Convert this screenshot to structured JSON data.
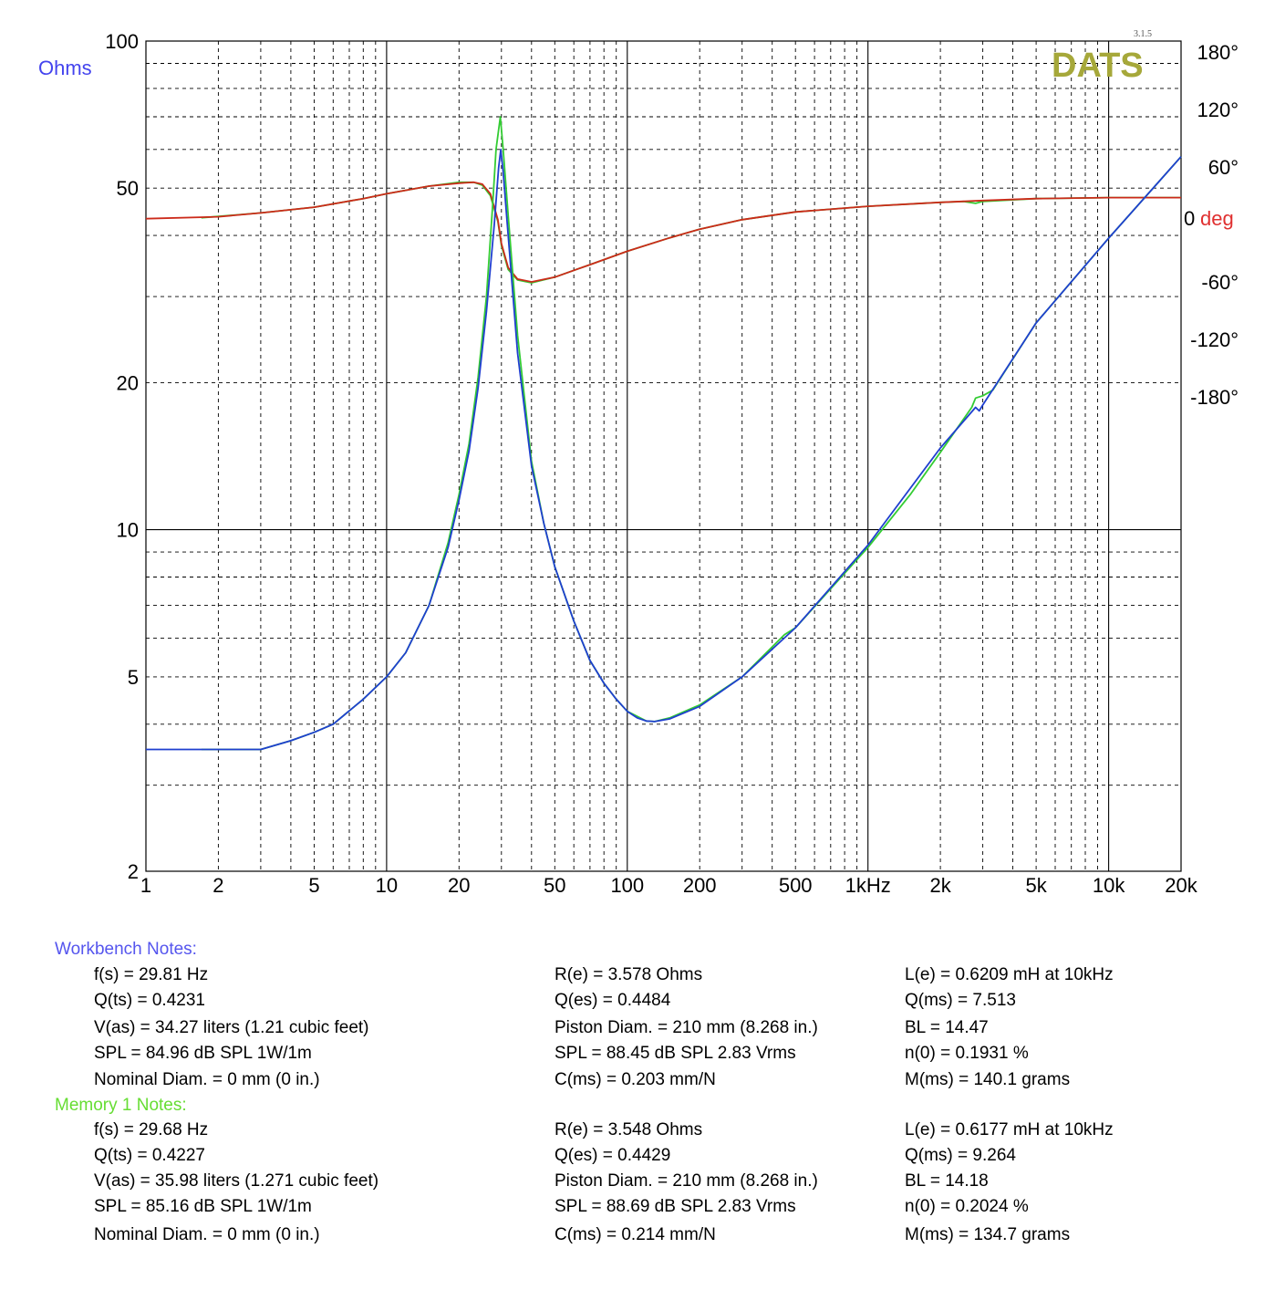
{
  "chart_data": {
    "type": "line",
    "logo": "DATS",
    "version": "3.1.5",
    "colors": {
      "workbench": "#1f3fcf",
      "memory": "#33cc33",
      "phase": "#cc2a1a",
      "ohms_label": "#4444ee",
      "deg_label": "#e03030",
      "logo": "#a6a83a"
    },
    "y_left_label": "Ohms",
    "y_right_label_num": "0",
    "y_right_label_unit": "deg",
    "x_scale": "log",
    "y_scale": "log",
    "xlim": [
      1,
      20000
    ],
    "ylim": [
      2,
      100
    ],
    "phase_lim": [
      -180,
      180
    ],
    "x_ticks": [
      {
        "v": 1,
        "label": "1"
      },
      {
        "v": 2,
        "label": "2"
      },
      {
        "v": 5,
        "label": "5"
      },
      {
        "v": 10,
        "label": "10"
      },
      {
        "v": 20,
        "label": "20"
      },
      {
        "v": 50,
        "label": "50"
      },
      {
        "v": 100,
        "label": "100"
      },
      {
        "v": 200,
        "label": "200"
      },
      {
        "v": 500,
        "label": "500"
      },
      {
        "v": 1000,
        "label": "1kHz"
      },
      {
        "v": 2000,
        "label": "2k"
      },
      {
        "v": 5000,
        "label": "5k"
      },
      {
        "v": 10000,
        "label": "10k"
      },
      {
        "v": 20000,
        "label": "20k"
      }
    ],
    "y_ticks": [
      {
        "v": 100,
        "label": "100"
      },
      {
        "v": 50,
        "label": "50"
      },
      {
        "v": 20,
        "label": "20"
      },
      {
        "v": 10,
        "label": "10"
      },
      {
        "v": 5,
        "label": "5"
      },
      {
        "v": 2,
        "label": "2"
      }
    ],
    "phase_ticks": [
      {
        "v": 180,
        "label": "180°"
      },
      {
        "v": 120,
        "label": "120°"
      },
      {
        "v": 60,
        "label": "60°"
      },
      {
        "v": -60,
        "label": "-60°"
      },
      {
        "v": -120,
        "label": "-120°"
      },
      {
        "v": -180,
        "label": "-180°"
      }
    ],
    "series": [
      {
        "role": "workbench-impedance",
        "points": [
          [
            1,
            3.55
          ],
          [
            2,
            3.55
          ],
          [
            3,
            3.55
          ],
          [
            4,
            3.7
          ],
          [
            5,
            3.85
          ],
          [
            6,
            4.0
          ],
          [
            8,
            4.5
          ],
          [
            10,
            5.0
          ],
          [
            12,
            5.6
          ],
          [
            15,
            7.0
          ],
          [
            18,
            9.2
          ],
          [
            20,
            11.5
          ],
          [
            22,
            14.5
          ],
          [
            24,
            19.5
          ],
          [
            26,
            28
          ],
          [
            28,
            42
          ],
          [
            29.2,
            55
          ],
          [
            29.81,
            60
          ],
          [
            30.5,
            54
          ],
          [
            32,
            40
          ],
          [
            35,
            23
          ],
          [
            40,
            13.5
          ],
          [
            45,
            10.3
          ],
          [
            50,
            8.4
          ],
          [
            60,
            6.5
          ],
          [
            70,
            5.4
          ],
          [
            80,
            4.85
          ],
          [
            90,
            4.5
          ],
          [
            100,
            4.25
          ],
          [
            110,
            4.12
          ],
          [
            120,
            4.06
          ],
          [
            130,
            4.05
          ],
          [
            150,
            4.1
          ],
          [
            200,
            4.35
          ],
          [
            300,
            5.0
          ],
          [
            500,
            6.3
          ],
          [
            1000,
            9.3
          ],
          [
            2000,
            14.7
          ],
          [
            2800,
            17.8
          ],
          [
            2900,
            17.5
          ],
          [
            3000,
            18.0
          ],
          [
            5000,
            26.5
          ],
          [
            10000,
            39.5
          ],
          [
            20000,
            58
          ]
        ]
      },
      {
        "role": "memory-impedance",
        "points": [
          [
            1.7,
            3.55
          ],
          [
            3,
            3.55
          ],
          [
            4,
            3.7
          ],
          [
            5,
            3.85
          ],
          [
            6,
            4.0
          ],
          [
            8,
            4.5
          ],
          [
            10,
            5.0
          ],
          [
            12,
            5.6
          ],
          [
            15,
            7.0
          ],
          [
            18,
            9.4
          ],
          [
            20,
            11.8
          ],
          [
            22,
            15.0
          ],
          [
            24,
            20.5
          ],
          [
            26,
            30
          ],
          [
            27.5,
            45
          ],
          [
            28.5,
            60
          ],
          [
            29.68,
            70
          ],
          [
            30.5,
            60
          ],
          [
            32,
            44
          ],
          [
            35,
            25
          ],
          [
            40,
            13.8
          ],
          [
            45,
            10.3
          ],
          [
            50,
            8.4
          ],
          [
            60,
            6.5
          ],
          [
            70,
            5.4
          ],
          [
            80,
            4.85
          ],
          [
            90,
            4.5
          ],
          [
            100,
            4.25
          ],
          [
            120,
            4.06
          ],
          [
            130,
            4.05
          ],
          [
            150,
            4.12
          ],
          [
            200,
            4.38
          ],
          [
            300,
            5.0
          ],
          [
            450,
            6.1
          ],
          [
            500,
            6.3
          ],
          [
            1000,
            9.2
          ],
          [
            1500,
            11.8
          ],
          [
            2000,
            14.4
          ],
          [
            2700,
            17.8
          ],
          [
            2800,
            18.6
          ],
          [
            3000,
            18.8
          ],
          [
            3300,
            19.3
          ],
          [
            5000,
            26.5
          ],
          [
            10000,
            39.5
          ],
          [
            20000,
            58
          ]
        ]
      },
      {
        "role": "workbench-phase",
        "points": [
          [
            1,
            6
          ],
          [
            2,
            8
          ],
          [
            3,
            12
          ],
          [
            5,
            18
          ],
          [
            8,
            27
          ],
          [
            10,
            32
          ],
          [
            15,
            40
          ],
          [
            20,
            43
          ],
          [
            23,
            44
          ],
          [
            25,
            42
          ],
          [
            27,
            32
          ],
          [
            29,
            5
          ],
          [
            30,
            -20
          ],
          [
            32,
            -45
          ],
          [
            35,
            -57
          ],
          [
            40,
            -60
          ],
          [
            50,
            -55
          ],
          [
            70,
            -42
          ],
          [
            100,
            -28
          ],
          [
            150,
            -14
          ],
          [
            200,
            -5
          ],
          [
            300,
            5
          ],
          [
            500,
            13
          ],
          [
            1000,
            19
          ],
          [
            2000,
            23
          ],
          [
            3000,
            25
          ],
          [
            5000,
            27
          ],
          [
            10000,
            28
          ],
          [
            20000,
            28
          ]
        ]
      },
      {
        "role": "memory-phase",
        "points": [
          [
            1.7,
            7
          ],
          [
            3,
            12
          ],
          [
            5,
            18
          ],
          [
            8,
            27
          ],
          [
            10,
            32
          ],
          [
            15,
            40
          ],
          [
            20,
            44
          ],
          [
            23,
            44
          ],
          [
            25,
            41
          ],
          [
            27,
            30
          ],
          [
            29,
            3
          ],
          [
            30,
            -22
          ],
          [
            32,
            -47
          ],
          [
            35,
            -58
          ],
          [
            40,
            -61
          ],
          [
            50,
            -55
          ],
          [
            70,
            -42
          ],
          [
            100,
            -28
          ],
          [
            150,
            -14
          ],
          [
            200,
            -5
          ],
          [
            300,
            5
          ],
          [
            500,
            13
          ],
          [
            1000,
            19
          ],
          [
            2000,
            23
          ],
          [
            2500,
            24
          ],
          [
            2800,
            22
          ],
          [
            3000,
            24
          ],
          [
            5000,
            27
          ],
          [
            10000,
            28
          ],
          [
            20000,
            28
          ]
        ]
      }
    ]
  },
  "notes": {
    "workbench_title": "Workbench Notes:",
    "memory_title": "Memory 1 Notes:",
    "workbench": {
      "fs": "f(s) = 29.81 Hz",
      "qts": "Q(ts) = 0.4231",
      "vas": "V(as) = 34.27 liters  (1.21 cubic feet)",
      "spl1": "SPL = 84.96 dB SPL 1W/1m",
      "nom": "Nominal Diam. = 0 mm (0 in.)",
      "re": "R(e) = 3.578 Ohms",
      "qes": "Q(es) = 0.4484",
      "piston": "Piston Diam. = 210 mm (8.268 in.)",
      "spl2": "SPL = 88.45 dB SPL 2.83 Vrms",
      "cms": "C(ms) = 0.203 mm/N",
      "le": "L(e) = 0.6209 mH at 10kHz",
      "qms": "Q(ms) = 7.513",
      "bl": "BL = 14.47",
      "n0": "n(0) = 0.1931 %",
      "mms": "M(ms) = 140.1 grams"
    },
    "memory": {
      "fs": "f(s) = 29.68 Hz",
      "qts": "Q(ts) = 0.4227",
      "vas": "V(as) = 35.98 liters  (1.271 cubic feet)",
      "spl1": "SPL = 85.16 dB SPL 1W/1m",
      "nom": "Nominal Diam. = 0 mm (0 in.)",
      "re": "R(e) = 3.548 Ohms",
      "qes": "Q(es) = 0.4429",
      "piston": "Piston Diam. = 210 mm (8.268 in.)",
      "spl2": "SPL = 88.69 dB SPL 2.83 Vrms",
      "cms": "C(ms) = 0.214 mm/N",
      "le": "L(e) = 0.6177 mH at 10kHz",
      "qms": "Q(ms) = 9.264",
      "bl": "BL = 14.18",
      "n0": "n(0) = 0.2024 %",
      "mms": "M(ms) = 134.7 grams"
    }
  }
}
